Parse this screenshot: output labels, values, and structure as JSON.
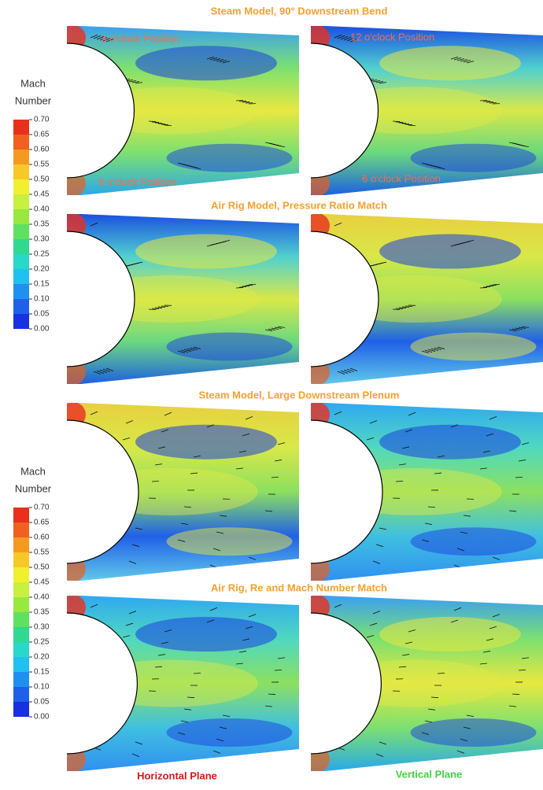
{
  "sections": [
    {
      "title": "Steam Model, 90° Downstream Bend"
    },
    {
      "title": "Air Rig Model, Pressure Ratio Match"
    },
    {
      "title": "Steam Model, Large Downstream Plenum"
    },
    {
      "title": "Air Rig, Re and Mach Number  Match"
    }
  ],
  "position_labels": [
    "3 o'clock Position",
    "12 o'clock Position",
    "9 o'clock Position",
    "6 o'clock Position"
  ],
  "legends": [
    {
      "title_lines": [
        "Mach",
        "Number"
      ],
      "ticks": [
        "0.70",
        "0.65",
        "0.60",
        "0.55",
        "0.50",
        "0.45",
        "0.40",
        "0.35",
        "0.30",
        "0.25",
        "0.20",
        "0.15",
        "0.10",
        "0.05",
        "0.00"
      ]
    },
    {
      "title_lines": [
        "Mach",
        "Number"
      ],
      "ticks": [
        "0.70",
        "0.65",
        "0.60",
        "0.55",
        "0.50",
        "0.45",
        "0.40",
        "0.35",
        "0.30",
        "0.25",
        "0.20",
        "0.15",
        "0.10",
        "0.05",
        "0.00"
      ]
    }
  ],
  "footer": {
    "horizontal": "Horizontal Plane",
    "vertical": "Vertical Plane"
  }
}
